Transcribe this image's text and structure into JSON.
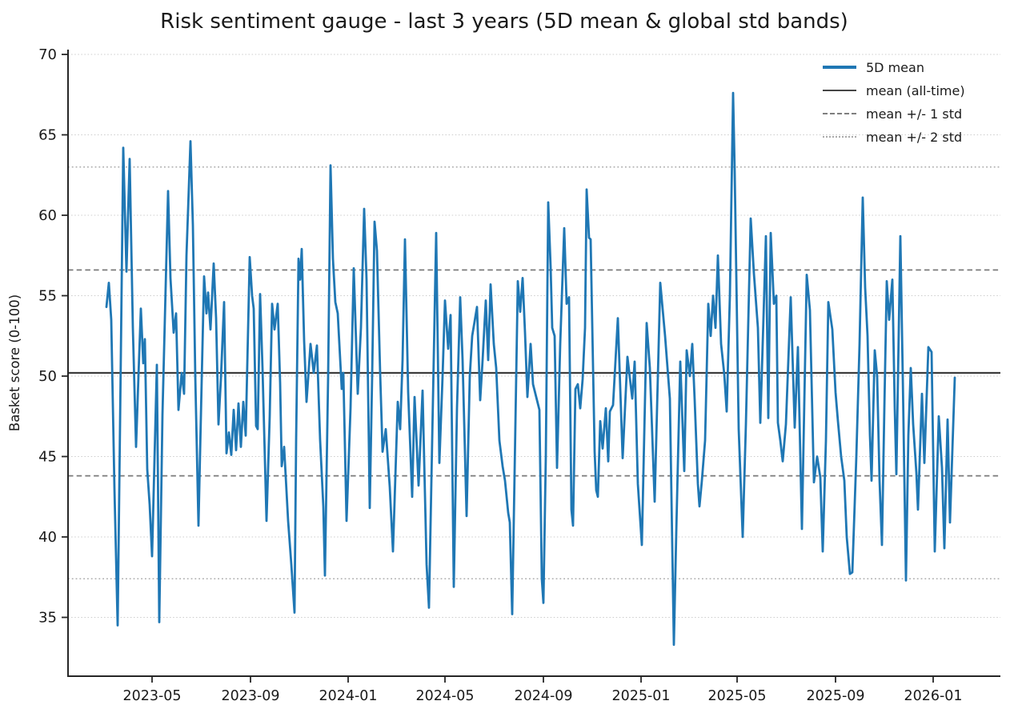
{
  "title": "Risk sentiment gauge - last 3 years (5D mean & global std bands)",
  "y_axis": {
    "label": "Basket score (0-100)",
    "ticks": [
      35,
      40,
      45,
      50,
      55,
      60,
      65,
      70
    ]
  },
  "x_axis": {
    "tick_labels": [
      "2023-05",
      "2023-09",
      "2024-01",
      "2024-05",
      "2024-09",
      "2025-01",
      "2025-05",
      "2025-09",
      "2026-01"
    ]
  },
  "legend": {
    "items": [
      {
        "label": "5D mean",
        "style": "solid-blue"
      },
      {
        "label": "mean (all-time)",
        "style": "solid-dark"
      },
      {
        "label": "mean +/- 1 std",
        "style": "dashed-gray"
      },
      {
        "label": "mean +/- 2 std",
        "style": "dotted-light"
      }
    ]
  },
  "colors": {
    "series_blue": "#1f77b4",
    "mean_line": "#3d3d3d",
    "std1_line": "#7a7a7a",
    "std2_line": "#adadad",
    "grid": "#cccccc",
    "spine": "#262626",
    "text": "#1a1a1a"
  },
  "chart_data": {
    "type": "line",
    "title": "Risk sentiment gauge - last 3 years (5D mean & global std bands)",
    "xlabel": "",
    "ylabel": "Basket score (0-100)",
    "series_name": "5D mean",
    "x_unit": "days since start of series",
    "x_start_date": "2023-03-05",
    "x_end_date": "2026-01-28",
    "x_tick_days": [
      57,
      180,
      302,
      423,
      546,
      668,
      788,
      911,
      1033
    ],
    "xlim_days": [
      -48,
      1117
    ],
    "ylim": [
      31.2,
      70.35
    ],
    "grid": "dotted horizontal at each y tick",
    "legend_position": "upper right, frameless",
    "stats": {
      "mean_all_time": 50.2,
      "std": 6.4,
      "mean_plus_1std": 56.6,
      "mean_minus_1std": 43.8,
      "mean_plus_2std": 63.0,
      "mean_minus_2std": 37.4
    },
    "observed_min": 33.3,
    "observed_max": 67.6,
    "points": [
      [
        0,
        54.3
      ],
      [
        3,
        55.8
      ],
      [
        6,
        53.5
      ],
      [
        10,
        43.0
      ],
      [
        14,
        34.5
      ],
      [
        17,
        47.0
      ],
      [
        21,
        64.2
      ],
      [
        25,
        56.5
      ],
      [
        29,
        63.5
      ],
      [
        33,
        53.0
      ],
      [
        37,
        45.6
      ],
      [
        40,
        50.0
      ],
      [
        43,
        54.2
      ],
      [
        46,
        50.8
      ],
      [
        48,
        52.3
      ],
      [
        51,
        44.2
      ],
      [
        54,
        42.0
      ],
      [
        57,
        38.8
      ],
      [
        63,
        50.7
      ],
      [
        66,
        34.7
      ],
      [
        70,
        47.6
      ],
      [
        77,
        61.5
      ],
      [
        80,
        56.1
      ],
      [
        84,
        52.7
      ],
      [
        87,
        53.9
      ],
      [
        90,
        47.9
      ],
      [
        94,
        50.2
      ],
      [
        97,
        48.9
      ],
      [
        100,
        57.5
      ],
      [
        105,
        64.6
      ],
      [
        108,
        59.4
      ],
      [
        111,
        50.0
      ],
      [
        115,
        40.7
      ],
      [
        119,
        49.7
      ],
      [
        122,
        56.2
      ],
      [
        125,
        53.9
      ],
      [
        127,
        55.2
      ],
      [
        130,
        52.9
      ],
      [
        134,
        57.0
      ],
      [
        137,
        53.6
      ],
      [
        140,
        47.0
      ],
      [
        143,
        49.8
      ],
      [
        147,
        54.6
      ],
      [
        150,
        45.2
      ],
      [
        153,
        46.5
      ],
      [
        156,
        45.1
      ],
      [
        159,
        47.9
      ],
      [
        162,
        45.4
      ],
      [
        165,
        48.3
      ],
      [
        168,
        45.6
      ],
      [
        171,
        48.4
      ],
      [
        174,
        46.3
      ],
      [
        179,
        57.4
      ],
      [
        182,
        55.0
      ],
      [
        184,
        54.2
      ],
      [
        187,
        46.9
      ],
      [
        189,
        46.7
      ],
      [
        192,
        55.1
      ],
      [
        195,
        50.5
      ],
      [
        200,
        41.0
      ],
      [
        204,
        47.5
      ],
      [
        207,
        54.5
      ],
      [
        210,
        52.9
      ],
      [
        214,
        54.5
      ],
      [
        217,
        49.6
      ],
      [
        219,
        44.4
      ],
      [
        222,
        45.6
      ],
      [
        227,
        41.0
      ],
      [
        231,
        38.3
      ],
      [
        235,
        35.3
      ],
      [
        237,
        46.0
      ],
      [
        240,
        57.3
      ],
      [
        242,
        56.0
      ],
      [
        244,
        57.9
      ],
      [
        247,
        52.2
      ],
      [
        250,
        48.4
      ],
      [
        255,
        52.0
      ],
      [
        259,
        50.2
      ],
      [
        263,
        51.9
      ],
      [
        267,
        46.0
      ],
      [
        271,
        41.9
      ],
      [
        273,
        37.6
      ],
      [
        277,
        50.0
      ],
      [
        280,
        63.1
      ],
      [
        283,
        57.3
      ],
      [
        286,
        54.6
      ],
      [
        289,
        53.9
      ],
      [
        294,
        49.2
      ],
      [
        296,
        50.2
      ],
      [
        300,
        41.0
      ],
      [
        305,
        48.0
      ],
      [
        309,
        56.7
      ],
      [
        314,
        48.9
      ],
      [
        318,
        53.0
      ],
      [
        322,
        60.4
      ],
      [
        325,
        56.0
      ],
      [
        329,
        41.8
      ],
      [
        332,
        50.0
      ],
      [
        335,
        59.6
      ],
      [
        338,
        57.8
      ],
      [
        342,
        50.2
      ],
      [
        345,
        45.3
      ],
      [
        349,
        46.7
      ],
      [
        354,
        43.1
      ],
      [
        358,
        39.1
      ],
      [
        364,
        48.4
      ],
      [
        367,
        46.7
      ],
      [
        370,
        51.0
      ],
      [
        373,
        58.5
      ],
      [
        377,
        49.0
      ],
      [
        382,
        42.5
      ],
      [
        385,
        48.7
      ],
      [
        390,
        43.2
      ],
      [
        395,
        49.1
      ],
      [
        400,
        38.3
      ],
      [
        403,
        35.6
      ],
      [
        407,
        46.0
      ],
      [
        412,
        58.9
      ],
      [
        416,
        44.6
      ],
      [
        420,
        50.0
      ],
      [
        423,
        54.7
      ],
      [
        427,
        51.7
      ],
      [
        430,
        53.8
      ],
      [
        434,
        36.9
      ],
      [
        438,
        48.0
      ],
      [
        442,
        54.9
      ],
      [
        445,
        51.0
      ],
      [
        450,
        41.3
      ],
      [
        454,
        50.0
      ],
      [
        457,
        52.5
      ],
      [
        463,
        54.3
      ],
      [
        467,
        48.5
      ],
      [
        470,
        51.0
      ],
      [
        474,
        54.7
      ],
      [
        477,
        51.0
      ],
      [
        480,
        55.7
      ],
      [
        484,
        52.0
      ],
      [
        487,
        50.5
      ],
      [
        491,
        46.0
      ],
      [
        495,
        44.4
      ],
      [
        498,
        43.5
      ],
      [
        502,
        41.5
      ],
      [
        504,
        40.9
      ],
      [
        507,
        35.2
      ],
      [
        511,
        47.0
      ],
      [
        514,
        55.9
      ],
      [
        517,
        54.0
      ],
      [
        520,
        56.1
      ],
      [
        523,
        52.7
      ],
      [
        526,
        48.7
      ],
      [
        530,
        52.0
      ],
      [
        533,
        49.5
      ],
      [
        537,
        48.7
      ],
      [
        541,
        47.9
      ],
      [
        544,
        37.4
      ],
      [
        546,
        35.9
      ],
      [
        549,
        45.0
      ],
      [
        552,
        60.8
      ],
      [
        555,
        56.8
      ],
      [
        557,
        53.0
      ],
      [
        560,
        52.5
      ],
      [
        563,
        44.3
      ],
      [
        567,
        52.0
      ],
      [
        572,
        59.2
      ],
      [
        575,
        54.5
      ],
      [
        578,
        54.9
      ],
      [
        581,
        41.7
      ],
      [
        583,
        40.7
      ],
      [
        586,
        49.2
      ],
      [
        589,
        49.5
      ],
      [
        592,
        48.0
      ],
      [
        595,
        49.8
      ],
      [
        598,
        53.0
      ],
      [
        600,
        61.6
      ],
      [
        603,
        58.6
      ],
      [
        605,
        58.5
      ],
      [
        610,
        45.3
      ],
      [
        612,
        42.9
      ],
      [
        614,
        42.5
      ],
      [
        617,
        47.2
      ],
      [
        620,
        45.5
      ],
      [
        624,
        48.0
      ],
      [
        627,
        44.7
      ],
      [
        629,
        47.8
      ],
      [
        633,
        48.2
      ],
      [
        639,
        53.6
      ],
      [
        645,
        44.9
      ],
      [
        651,
        51.2
      ],
      [
        657,
        48.6
      ],
      [
        660,
        50.9
      ],
      [
        664,
        43.3
      ],
      [
        669,
        39.5
      ],
      [
        675,
        53.3
      ],
      [
        679,
        50.5
      ],
      [
        685,
        42.2
      ],
      [
        692,
        55.8
      ],
      [
        698,
        52.5
      ],
      [
        704,
        48.6
      ],
      [
        709,
        33.3
      ],
      [
        712,
        40.3
      ],
      [
        717,
        50.9
      ],
      [
        722,
        44.1
      ],
      [
        725,
        51.6
      ],
      [
        729,
        50.0
      ],
      [
        732,
        52.0
      ],
      [
        735,
        48.5
      ],
      [
        739,
        43.3
      ],
      [
        741,
        41.9
      ],
      [
        744,
        43.5
      ],
      [
        748,
        46.0
      ],
      [
        752,
        54.5
      ],
      [
        755,
        52.5
      ],
      [
        758,
        55.0
      ],
      [
        761,
        53.0
      ],
      [
        764,
        57.5
      ],
      [
        768,
        52.0
      ],
      [
        772,
        50.1
      ],
      [
        775,
        47.8
      ],
      [
        779,
        55.0
      ],
      [
        783,
        67.6
      ],
      [
        785,
        62.7
      ],
      [
        787,
        56.3
      ],
      [
        790,
        46.7
      ],
      [
        795,
        40.0
      ],
      [
        799,
        47.0
      ],
      [
        805,
        59.8
      ],
      [
        809,
        56.4
      ],
      [
        814,
        53.0
      ],
      [
        817,
        47.1
      ],
      [
        820,
        52.0
      ],
      [
        824,
        58.7
      ],
      [
        827,
        47.4
      ],
      [
        830,
        58.9
      ],
      [
        834,
        54.5
      ],
      [
        837,
        55.0
      ],
      [
        839,
        47.1
      ],
      [
        842,
        46.0
      ],
      [
        845,
        44.7
      ],
      [
        849,
        47.0
      ],
      [
        855,
        54.9
      ],
      [
        860,
        46.8
      ],
      [
        864,
        51.8
      ],
      [
        869,
        40.5
      ],
      [
        875,
        56.3
      ],
      [
        879,
        54.1
      ],
      [
        884,
        43.4
      ],
      [
        888,
        45.0
      ],
      [
        892,
        43.7
      ],
      [
        895,
        39.1
      ],
      [
        899,
        46.0
      ],
      [
        902,
        54.6
      ],
      [
        907,
        52.9
      ],
      [
        911,
        49.0
      ],
      [
        914,
        47.2
      ],
      [
        918,
        45.0
      ],
      [
        922,
        43.5
      ],
      [
        925,
        40.0
      ],
      [
        929,
        37.7
      ],
      [
        932,
        37.8
      ],
      [
        937,
        45.0
      ],
      [
        941,
        52.0
      ],
      [
        945,
        61.1
      ],
      [
        948,
        55.5
      ],
      [
        951,
        52.5
      ],
      [
        954,
        46.3
      ],
      [
        956,
        43.5
      ],
      [
        960,
        51.6
      ],
      [
        963,
        50.0
      ],
      [
        966,
        43.5
      ],
      [
        969,
        39.5
      ],
      [
        972,
        48.0
      ],
      [
        975,
        55.9
      ],
      [
        978,
        53.5
      ],
      [
        982,
        56.0
      ],
      [
        985,
        48.0
      ],
      [
        987,
        43.9
      ],
      [
        992,
        58.7
      ],
      [
        995,
        50.0
      ],
      [
        999,
        37.3
      ],
      [
        1002,
        46.3
      ],
      [
        1005,
        50.5
      ],
      [
        1008,
        47.0
      ],
      [
        1012,
        44.0
      ],
      [
        1014,
        41.7
      ],
      [
        1019,
        48.9
      ],
      [
        1022,
        44.6
      ],
      [
        1027,
        51.8
      ],
      [
        1031,
        51.5
      ],
      [
        1035,
        39.1
      ],
      [
        1040,
        47.5
      ],
      [
        1044,
        44.3
      ],
      [
        1047,
        39.3
      ],
      [
        1051,
        47.3
      ],
      [
        1054,
        40.9
      ],
      [
        1057,
        45.4
      ],
      [
        1060,
        49.9
      ]
    ]
  }
}
